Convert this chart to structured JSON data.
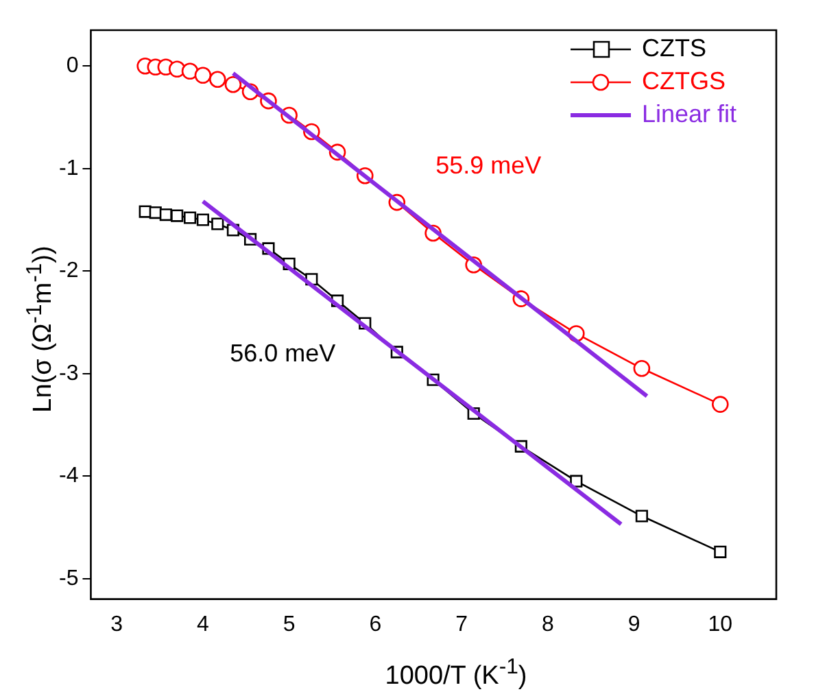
{
  "chart_data": {
    "type": "line",
    "xlabel": "1000/T (K$^{-1}$)",
    "ylabel": "Ln(σ (Ω$^{-1}$m$^{-1}$))",
    "xlim": [
      2.7,
      10.65
    ],
    "ylim": [
      -5.2,
      0.35
    ],
    "xticks": [
      3,
      4,
      5,
      6,
      7,
      8,
      9,
      10
    ],
    "yticks": [
      0,
      -1,
      -2,
      -3,
      -4,
      -5
    ],
    "grid": false,
    "legend": "top right",
    "series": [
      {
        "name": "CZTS",
        "color": "#000000",
        "marker": "square",
        "x": [
          3.33,
          3.45,
          3.57,
          3.7,
          3.85,
          4.0,
          4.17,
          4.35,
          4.55,
          4.76,
          5.0,
          5.26,
          5.56,
          5.88,
          6.25,
          6.67,
          7.14,
          7.69,
          8.33,
          9.09,
          10.0
        ],
        "values": [
          -1.42,
          -1.43,
          -1.45,
          -1.46,
          -1.48,
          -1.5,
          -1.54,
          -1.6,
          -1.69,
          -1.78,
          -1.93,
          -2.08,
          -2.29,
          -2.51,
          -2.79,
          -3.06,
          -3.39,
          -3.71,
          -4.05,
          -4.39,
          -4.74
        ]
      },
      {
        "name": "CZTGS",
        "color": "#ff0000",
        "marker": "circle",
        "x": [
          3.33,
          3.45,
          3.57,
          3.7,
          3.85,
          4.0,
          4.17,
          4.35,
          4.55,
          4.76,
          5.0,
          5.26,
          5.56,
          5.88,
          6.25,
          6.67,
          7.14,
          7.69,
          8.33,
          9.09,
          10.0
        ],
        "values": [
          0,
          -0.01,
          -0.01,
          -0.03,
          -0.05,
          -0.09,
          -0.13,
          -0.18,
          -0.25,
          -0.34,
          -0.48,
          -0.64,
          -0.84,
          -1.07,
          -1.33,
          -1.63,
          -1.94,
          -2.27,
          -2.61,
          -2.95,
          -3.3
        ]
      },
      {
        "name": "Linear fit",
        "color": "#8a2be2",
        "marker": "none",
        "x": [
          4.35,
          9.15
        ],
        "values": [
          -0.07,
          -3.22
        ]
      },
      {
        "color": "#8a2be2",
        "marker": "none",
        "x": [
          4.0,
          8.85
        ],
        "values": [
          -1.32,
          -4.47
        ]
      }
    ],
    "annotations": [
      "56.0 meV",
      "55.9 meV"
    ]
  }
}
